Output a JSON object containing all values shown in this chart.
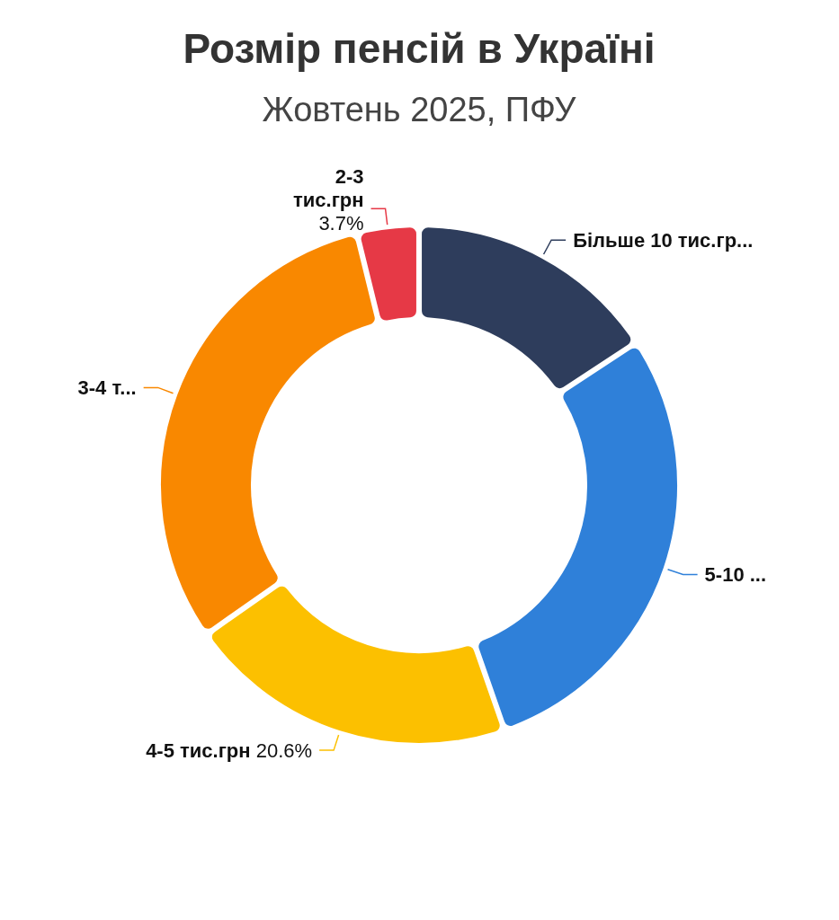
{
  "chart_data": {
    "type": "donut",
    "title": "Розмір пенсій в Україні",
    "subtitle": "Жовтень 2025, ПФУ",
    "categories": [
      "Більше 10 тис.гр...",
      "5-10 ...",
      "4-5 тис.грн",
      "3-4 т...",
      "2-3 тис.грн"
    ],
    "values": [
      15.7,
      29.0,
      20.6,
      31.0,
      3.7
    ],
    "colors": [
      "#2e3d5c",
      "#2f80d9",
      "#fcc000",
      "#f98800",
      "#e63946"
    ],
    "value_labels": [
      null,
      null,
      "20.6%",
      null,
      "3.7%"
    ]
  }
}
